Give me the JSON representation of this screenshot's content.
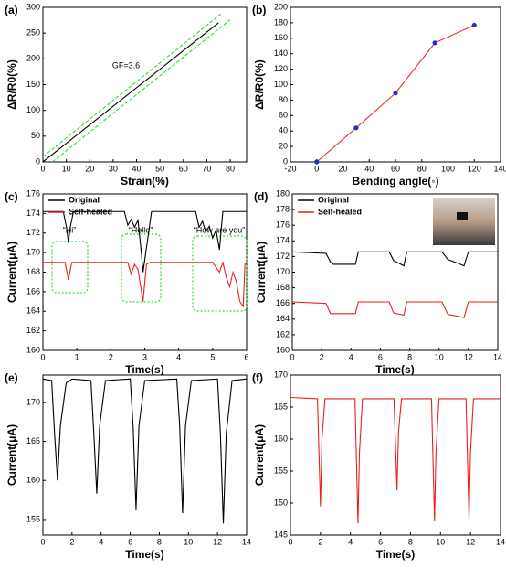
{
  "chart_data": [
    {
      "type": "line",
      "panel": "(a)",
      "x_label": "Strain(%)",
      "y_label": "ΔR/R0(%)",
      "annotations": [
        "GF=3.6"
      ],
      "xlim": [
        0,
        87
      ],
      "xticks": [
        0,
        10,
        20,
        30,
        40,
        50,
        60,
        70,
        80
      ],
      "ylim": [
        0,
        300
      ],
      "yticks": [
        0,
        50,
        100,
        150,
        200,
        250,
        300
      ],
      "series": [
        {
          "color": "#000000",
          "x": [
            0,
            75
          ],
          "values": [
            0,
            270
          ]
        },
        {
          "color": "#33dd33",
          "dash": true,
          "x": [
            0,
            76
          ],
          "values": [
            10,
            287
          ]
        },
        {
          "color": "#33dd33",
          "dash": true,
          "x": [
            4,
            80
          ],
          "values": [
            0,
            276
          ]
        }
      ]
    },
    {
      "type": "line",
      "panel": "(b)",
      "x_label": "Bending angle(◦)",
      "y_label": "ΔR/R0(%)",
      "xlim": [
        -20,
        140
      ],
      "xticks": [
        -20,
        0,
        20,
        40,
        60,
        80,
        100,
        120,
        140
      ],
      "ylim": [
        0,
        200
      ],
      "yticks": [
        0,
        20,
        40,
        60,
        80,
        100,
        120,
        140,
        160,
        180,
        200
      ],
      "series": [
        {
          "color": "#e83030",
          "marker_color": "#2030d0",
          "x": [
            0,
            30,
            60,
            90,
            120
          ],
          "values": [
            0,
            44,
            89,
            154,
            177
          ]
        }
      ]
    },
    {
      "type": "line",
      "panel": "(c)",
      "x_label": "Time(s)",
      "y_label": "Current(μA)",
      "annotations": [
        "“Hi”",
        "“Hello”",
        "“How are you”"
      ],
      "xlim": [
        0,
        6
      ],
      "xticks": [
        0,
        1,
        2,
        3,
        4,
        5,
        6
      ],
      "ylim": [
        160,
        176
      ],
      "yticks": [
        160,
        162,
        164,
        166,
        168,
        170,
        172,
        174,
        176
      ],
      "series": [
        {
          "name": "Original",
          "color": "#000000",
          "x": [
            0,
            0.6,
            0.7,
            0.75,
            0.8,
            0.9,
            2.4,
            2.5,
            2.6,
            2.7,
            2.8,
            2.9,
            2.95,
            3.05,
            3.2,
            4.5,
            4.6,
            4.7,
            4.8,
            4.9,
            5.0,
            5.1,
            5.2,
            5.3,
            6
          ],
          "values": [
            174.2,
            174.2,
            172.5,
            171,
            172.5,
            174.2,
            174.2,
            172.8,
            173.4,
            172.6,
            173.3,
            170,
            168,
            170.5,
            174.2,
            174.2,
            172.6,
            173.2,
            172.1,
            172.7,
            171.5,
            172.3,
            170.3,
            174.2,
            174.2
          ]
        },
        {
          "name": "Self-healed",
          "color": "#e82020",
          "x": [
            0,
            0.65,
            0.75,
            0.85,
            2.5,
            2.6,
            2.7,
            2.8,
            2.95,
            3.05,
            3.15,
            5.0,
            5.2,
            5.3,
            5.4,
            5.5,
            5.6,
            5.7,
            5.8,
            5.9,
            5.95,
            6
          ],
          "values": [
            169,
            169,
            167.2,
            169,
            169,
            167.8,
            168.8,
            168.3,
            165,
            168.8,
            169,
            169,
            168,
            169,
            167.5,
            166.5,
            168,
            167,
            165,
            164.5,
            168.8,
            169
          ]
        }
      ]
    },
    {
      "type": "line",
      "panel": "(d)",
      "x_label": "Time(s)",
      "y_label": "Current(μA)",
      "xlim": [
        0,
        14
      ],
      "xticks": [
        0,
        2,
        4,
        6,
        8,
        10,
        12,
        14
      ],
      "ylim": [
        160,
        180
      ],
      "yticks": [
        160,
        162,
        164,
        166,
        168,
        170,
        172,
        174,
        176,
        178,
        180
      ],
      "series": [
        {
          "name": "Original",
          "color": "#000000",
          "x": [
            0,
            2.3,
            2.6,
            2.8,
            4.3,
            4.5,
            6.6,
            6.9,
            7.2,
            7.6,
            7.8,
            10.2,
            10.6,
            11.2,
            11.7,
            12.0,
            14
          ],
          "values": [
            172.6,
            172.4,
            171.3,
            171,
            171,
            172.6,
            172.6,
            171.5,
            171.2,
            170.8,
            172.6,
            172.6,
            171.6,
            171.2,
            170.8,
            172.6,
            172.6
          ]
        },
        {
          "name": "Self-healed",
          "color": "#e82020",
          "x": [
            0,
            2.3,
            2.6,
            4.3,
            4.5,
            6.6,
            6.9,
            7.6,
            7.8,
            10.2,
            10.6,
            11.7,
            12.0,
            14
          ],
          "values": [
            166.2,
            166,
            164.7,
            164.7,
            166.2,
            166.2,
            164.8,
            164.5,
            166.2,
            166.2,
            164.6,
            164.2,
            166.2,
            166.2
          ]
        }
      ]
    },
    {
      "type": "line",
      "panel": "(e)",
      "x_label": "Time(s)",
      "y_label": "Current(μA)",
      "xlim": [
        0,
        14
      ],
      "xticks": [
        0,
        2,
        4,
        6,
        8,
        10,
        12,
        14
      ],
      "ylim": [
        153,
        173.5
      ],
      "yticks": [
        155,
        160,
        165,
        170
      ],
      "series": [
        {
          "color": "#000000",
          "x": [
            0,
            0.6,
            0.8,
            1.0,
            1.2,
            1.6,
            2.0,
            3.3,
            3.5,
            3.7,
            3.9,
            4.3,
            6.0,
            6.2,
            6.4,
            6.6,
            7.0,
            9.2,
            9.4,
            9.6,
            9.8,
            10.2,
            12.0,
            12.2,
            12.4,
            12.6,
            13.0,
            14
          ],
          "values": [
            173,
            172.8,
            166,
            160,
            167,
            172.5,
            173,
            172.8,
            166,
            158.3,
            167,
            172.8,
            173,
            167,
            156.3,
            167,
            172.8,
            173,
            167,
            155.8,
            167,
            172.8,
            173,
            166,
            154.5,
            166,
            172.8,
            173
          ]
        }
      ]
    },
    {
      "type": "line",
      "panel": "(f)",
      "x_label": "Time(s)",
      "y_label": "Current(μA)",
      "xlim": [
        0,
        14
      ],
      "xticks": [
        0,
        2,
        4,
        6,
        8,
        10,
        12,
        14
      ],
      "ylim": [
        145,
        170
      ],
      "yticks": [
        145,
        150,
        155,
        160,
        165,
        170
      ],
      "series": [
        {
          "color": "#e82020",
          "x": [
            0,
            1.8,
            2.0,
            2.1,
            2.3,
            4.3,
            4.5,
            4.6,
            4.8,
            6.9,
            7.1,
            7.2,
            7.4,
            9.4,
            9.6,
            9.7,
            9.9,
            11.7,
            11.9,
            12.0,
            12.2,
            14
          ],
          "values": [
            166.5,
            166.3,
            149.5,
            160,
            166.3,
            166.3,
            146.8,
            158,
            166.3,
            166.3,
            152,
            161,
            166.3,
            166.3,
            147.2,
            158,
            166.3,
            166.3,
            147.5,
            158,
            166.3,
            166.3
          ]
        }
      ]
    }
  ]
}
